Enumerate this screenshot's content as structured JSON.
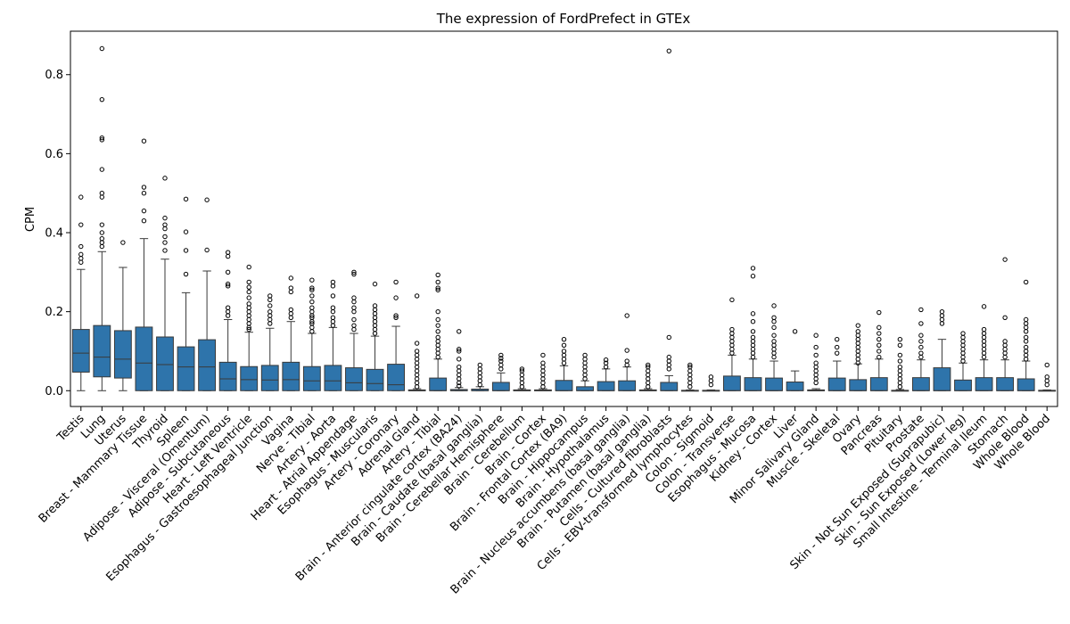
{
  "chart_data": {
    "type": "box",
    "title": "The expression of FordPrefect in GTEx",
    "xlabel": "",
    "ylabel": "CPM",
    "ylim": [
      -0.04,
      0.91
    ],
    "yticks": [
      0.0,
      0.2,
      0.4,
      0.6,
      0.8
    ],
    "ytick_labels": [
      "0.0",
      "0.2",
      "0.4",
      "0.6",
      "0.8"
    ],
    "grid": false,
    "box_color": "#2e74ab",
    "categories": [
      {
        "name": "Testis",
        "min": 0.0,
        "q1": 0.047,
        "median": 0.095,
        "q3": 0.155,
        "max": 0.307,
        "outliers": [
          0.325,
          0.335,
          0.345,
          0.365,
          0.42,
          0.49
        ]
      },
      {
        "name": "Lung",
        "min": 0.0,
        "q1": 0.035,
        "median": 0.085,
        "q3": 0.165,
        "max": 0.352,
        "outliers": [
          0.365,
          0.375,
          0.385,
          0.4,
          0.42,
          0.49,
          0.5,
          0.56,
          0.635,
          0.64,
          0.737,
          0.866
        ]
      },
      {
        "name": "Uterus",
        "min": 0.0,
        "q1": 0.032,
        "median": 0.08,
        "q3": 0.152,
        "max": 0.312,
        "outliers": [
          0.375
        ]
      },
      {
        "name": "Breast - Mammary Tissue",
        "min": 0.0,
        "q1": 0.0,
        "median": 0.07,
        "q3": 0.161,
        "max": 0.385,
        "outliers": [
          0.43,
          0.455,
          0.5,
          0.515,
          0.632
        ]
      },
      {
        "name": "Thyroid",
        "min": 0.0,
        "q1": 0.0,
        "median": 0.066,
        "q3": 0.136,
        "max": 0.333,
        "outliers": [
          0.355,
          0.375,
          0.39,
          0.41,
          0.42,
          0.437,
          0.538
        ]
      },
      {
        "name": "Spleen",
        "min": 0.0,
        "q1": 0.0,
        "median": 0.06,
        "q3": 0.111,
        "max": 0.248,
        "outliers": [
          0.295,
          0.355,
          0.402,
          0.485
        ]
      },
      {
        "name": "Adipose - Visceral (Omentum)",
        "min": 0.0,
        "q1": 0.0,
        "median": 0.06,
        "q3": 0.129,
        "max": 0.303,
        "outliers": [
          0.356,
          0.483
        ]
      },
      {
        "name": "Adipose - Subcutaneous",
        "min": 0.0,
        "q1": 0.0,
        "median": 0.03,
        "q3": 0.072,
        "max": 0.18,
        "outliers": [
          0.19,
          0.2,
          0.21,
          0.265,
          0.27,
          0.3,
          0.34,
          0.35
        ]
      },
      {
        "name": "Heart - Left Ventricle",
        "min": 0.0,
        "q1": 0.0,
        "median": 0.028,
        "q3": 0.061,
        "max": 0.148,
        "outliers": [
          0.155,
          0.16,
          0.17,
          0.18,
          0.19,
          0.2,
          0.21,
          0.22,
          0.235,
          0.25,
          0.262,
          0.275,
          0.313
        ]
      },
      {
        "name": "Esophagus - Gastroesophageal Junction",
        "min": 0.0,
        "q1": 0.0,
        "median": 0.027,
        "q3": 0.064,
        "max": 0.158,
        "outliers": [
          0.17,
          0.18,
          0.19,
          0.2,
          0.215,
          0.23,
          0.24
        ]
      },
      {
        "name": "Vagina",
        "min": 0.0,
        "q1": 0.0,
        "median": 0.028,
        "q3": 0.072,
        "max": 0.175,
        "outliers": [
          0.185,
          0.195,
          0.205,
          0.25,
          0.26,
          0.285
        ]
      },
      {
        "name": "Nerve - Tibial",
        "min": 0.0,
        "q1": 0.0,
        "median": 0.025,
        "q3": 0.061,
        "max": 0.145,
        "outliers": [
          0.15,
          0.16,
          0.17,
          0.175,
          0.185,
          0.19,
          0.2,
          0.21,
          0.225,
          0.24,
          0.255,
          0.26,
          0.28
        ]
      },
      {
        "name": "Artery - Aorta",
        "min": 0.0,
        "q1": 0.0,
        "median": 0.025,
        "q3": 0.064,
        "max": 0.16,
        "outliers": [
          0.165,
          0.175,
          0.185,
          0.2,
          0.21,
          0.24,
          0.265,
          0.275
        ]
      },
      {
        "name": "Heart - Atrial Appendage",
        "min": 0.0,
        "q1": 0.0,
        "median": 0.02,
        "q3": 0.058,
        "max": 0.145,
        "outliers": [
          0.155,
          0.165,
          0.18,
          0.2,
          0.21,
          0.225,
          0.235,
          0.295,
          0.3
        ]
      },
      {
        "name": "Esophagus - Muscularis",
        "min": 0.0,
        "q1": 0.0,
        "median": 0.018,
        "q3": 0.054,
        "max": 0.138,
        "outliers": [
          0.145,
          0.155,
          0.165,
          0.175,
          0.185,
          0.195,
          0.205,
          0.215,
          0.27
        ]
      },
      {
        "name": "Artery - Coronary",
        "min": 0.0,
        "q1": 0.0,
        "median": 0.015,
        "q3": 0.067,
        "max": 0.163,
        "outliers": [
          0.185,
          0.19,
          0.235,
          0.275
        ]
      },
      {
        "name": "Adrenal Gland",
        "min": 0.0,
        "q1": 0.0,
        "median": 0.0,
        "q3": 0.002,
        "max": 0.005,
        "outliers": [
          0.01,
          0.02,
          0.03,
          0.04,
          0.05,
          0.06,
          0.07,
          0.08,
          0.09,
          0.1,
          0.12,
          0.24
        ]
      },
      {
        "name": "Artery - Tibial",
        "min": 0.0,
        "q1": 0.0,
        "median": 0.0,
        "q3": 0.032,
        "max": 0.08,
        "outliers": [
          0.085,
          0.095,
          0.105,
          0.115,
          0.125,
          0.135,
          0.15,
          0.165,
          0.18,
          0.2,
          0.255,
          0.26,
          0.275,
          0.293
        ]
      },
      {
        "name": "Brain - Anterior cingulate cortex (BA24)",
        "min": 0.0,
        "q1": 0.0,
        "median": 0.0,
        "q3": 0.003,
        "max": 0.008,
        "outliers": [
          0.012,
          0.02,
          0.03,
          0.04,
          0.05,
          0.06,
          0.08,
          0.1,
          0.105,
          0.15
        ]
      },
      {
        "name": "Brain - Caudate (basal ganglia)",
        "min": 0.0,
        "q1": 0.0,
        "median": 0.0,
        "q3": 0.004,
        "max": 0.01,
        "outliers": [
          0.015,
          0.025,
          0.035,
          0.045,
          0.055,
          0.065
        ]
      },
      {
        "name": "Brain - Cerebellar Hemisphere",
        "min": 0.0,
        "q1": 0.0,
        "median": 0.0,
        "q3": 0.021,
        "max": 0.045,
        "outliers": [
          0.055,
          0.065,
          0.075,
          0.082,
          0.09
        ]
      },
      {
        "name": "Brain - Cerebellum",
        "min": 0.0,
        "q1": 0.0,
        "median": 0.0,
        "q3": 0.002,
        "max": 0.005,
        "outliers": [
          0.01,
          0.02,
          0.03,
          0.04,
          0.05,
          0.055
        ]
      },
      {
        "name": "Brain - Cortex",
        "min": 0.0,
        "q1": 0.0,
        "median": 0.0,
        "q3": 0.002,
        "max": 0.005,
        "outliers": [
          0.01,
          0.02,
          0.03,
          0.04,
          0.05,
          0.06,
          0.07,
          0.09
        ]
      },
      {
        "name": "Brain - Frontal Cortex (BA9)",
        "min": 0.0,
        "q1": 0.0,
        "median": 0.0,
        "q3": 0.026,
        "max": 0.063,
        "outliers": [
          0.07,
          0.08,
          0.09,
          0.1,
          0.115,
          0.13
        ]
      },
      {
        "name": "Brain - Hippocampus",
        "min": 0.0,
        "q1": 0.0,
        "median": 0.0,
        "q3": 0.01,
        "max": 0.025,
        "outliers": [
          0.03,
          0.04,
          0.05,
          0.06,
          0.07,
          0.08,
          0.09
        ]
      },
      {
        "name": "Brain - Hypothalamus",
        "min": 0.0,
        "q1": 0.0,
        "median": 0.0,
        "q3": 0.023,
        "max": 0.055,
        "outliers": [
          0.06,
          0.07,
          0.078
        ]
      },
      {
        "name": "Brain - Nucleus accumbens (basal ganglia)",
        "min": 0.0,
        "q1": 0.0,
        "median": 0.0,
        "q3": 0.025,
        "max": 0.06,
        "outliers": [
          0.065,
          0.075,
          0.102,
          0.19
        ]
      },
      {
        "name": "Brain - Putamen (basal ganglia)",
        "min": 0.0,
        "q1": 0.0,
        "median": 0.0,
        "q3": 0.002,
        "max": 0.005,
        "outliers": [
          0.01,
          0.02,
          0.03,
          0.04,
          0.05,
          0.06,
          0.065
        ]
      },
      {
        "name": "Cells - Cultured fibroblasts",
        "min": 0.0,
        "q1": 0.0,
        "median": 0.0,
        "q3": 0.021,
        "max": 0.038,
        "outliers": [
          0.055,
          0.065,
          0.075,
          0.085,
          0.135,
          0.86
        ]
      },
      {
        "name": "Cells - EBV-transformed lymphocytes",
        "min": 0.0,
        "q1": 0.0,
        "median": 0.0,
        "q3": 0.001,
        "max": 0.002,
        "outliers": [
          0.01,
          0.02,
          0.03,
          0.04,
          0.05,
          0.06,
          0.065
        ]
      },
      {
        "name": "Colon - Sigmoid",
        "min": 0.0,
        "q1": 0.0,
        "median": 0.0,
        "q3": 0.001,
        "max": 0.002,
        "outliers": [
          0.015,
          0.025,
          0.035
        ]
      },
      {
        "name": "Colon - Transverse",
        "min": 0.0,
        "q1": 0.0,
        "median": 0.0,
        "q3": 0.037,
        "max": 0.09,
        "outliers": [
          0.095,
          0.105,
          0.115,
          0.125,
          0.135,
          0.145,
          0.155,
          0.23
        ]
      },
      {
        "name": "Esophagus - Mucosa",
        "min": 0.0,
        "q1": 0.0,
        "median": 0.0,
        "q3": 0.033,
        "max": 0.08,
        "outliers": [
          0.085,
          0.095,
          0.105,
          0.115,
          0.125,
          0.135,
          0.15,
          0.175,
          0.195,
          0.29,
          0.31
        ]
      },
      {
        "name": "Kidney - Cortex",
        "min": 0.0,
        "q1": 0.0,
        "median": 0.0,
        "q3": 0.032,
        "max": 0.075,
        "outliers": [
          0.085,
          0.095,
          0.105,
          0.115,
          0.125,
          0.14,
          0.16,
          0.175,
          0.185,
          0.215
        ]
      },
      {
        "name": "Liver",
        "min": 0.0,
        "q1": 0.0,
        "median": 0.0,
        "q3": 0.022,
        "max": 0.05,
        "outliers": [
          0.15
        ]
      },
      {
        "name": "Minor Salivary Gland",
        "min": 0.0,
        "q1": 0.0,
        "median": 0.0,
        "q3": 0.002,
        "max": 0.005,
        "outliers": [
          0.02,
          0.03,
          0.04,
          0.05,
          0.06,
          0.07,
          0.09,
          0.11,
          0.14
        ]
      },
      {
        "name": "Muscle - Skeletal",
        "min": 0.0,
        "q1": 0.0,
        "median": 0.0,
        "q3": 0.032,
        "max": 0.075,
        "outliers": [
          0.095,
          0.11,
          0.13
        ]
      },
      {
        "name": "Ovary",
        "min": 0.0,
        "q1": 0.0,
        "median": 0.0,
        "q3": 0.028,
        "max": 0.068,
        "outliers": [
          0.07,
          0.08,
          0.09,
          0.1,
          0.11,
          0.12,
          0.13,
          0.14,
          0.15,
          0.165
        ]
      },
      {
        "name": "Pancreas",
        "min": 0.0,
        "q1": 0.0,
        "median": 0.0,
        "q3": 0.033,
        "max": 0.08,
        "outliers": [
          0.085,
          0.1,
          0.115,
          0.13,
          0.145,
          0.16,
          0.198
        ]
      },
      {
        "name": "Pituitary",
        "min": 0.0,
        "q1": 0.0,
        "median": 0.0,
        "q3": 0.001,
        "max": 0.003,
        "outliers": [
          0.01,
          0.02,
          0.03,
          0.04,
          0.05,
          0.06,
          0.075,
          0.09,
          0.115,
          0.13
        ]
      },
      {
        "name": "Prostate",
        "min": 0.0,
        "q1": 0.0,
        "median": 0.0,
        "q3": 0.033,
        "max": 0.078,
        "outliers": [
          0.085,
          0.095,
          0.11,
          0.125,
          0.14,
          0.17,
          0.205
        ]
      },
      {
        "name": "Skin - Not Sun Exposed (Suprapubic)",
        "min": 0.0,
        "q1": 0.0,
        "median": 0.0,
        "q3": 0.058,
        "max": 0.13,
        "outliers": [
          0.17,
          0.18,
          0.19,
          0.2
        ]
      },
      {
        "name": "Skin - Sun Exposed (Lower leg)",
        "min": 0.0,
        "q1": 0.0,
        "median": 0.0,
        "q3": 0.027,
        "max": 0.07,
        "outliers": [
          0.075,
          0.085,
          0.095,
          0.105,
          0.115,
          0.125,
          0.135,
          0.145
        ]
      },
      {
        "name": "Small Intestine - Terminal Ileum",
        "min": 0.0,
        "q1": 0.0,
        "median": 0.0,
        "q3": 0.033,
        "max": 0.078,
        "outliers": [
          0.085,
          0.095,
          0.105,
          0.115,
          0.125,
          0.135,
          0.145,
          0.155,
          0.213
        ]
      },
      {
        "name": "Stomach",
        "min": 0.0,
        "q1": 0.0,
        "median": 0.0,
        "q3": 0.033,
        "max": 0.078,
        "outliers": [
          0.085,
          0.095,
          0.105,
          0.115,
          0.125,
          0.185,
          0.332
        ]
      },
      {
        "name": "Whole Blood",
        "min": 0.0,
        "q1": 0.0,
        "median": 0.0,
        "q3": 0.03,
        "max": 0.075,
        "outliers": [
          0.08,
          0.09,
          0.1,
          0.11,
          0.125,
          0.135,
          0.15,
          0.16,
          0.17,
          0.18,
          0.275
        ]
      },
      {
        "name": "Whole Blood ",
        "min": 0.0,
        "q1": 0.0,
        "median": 0.0,
        "q3": 0.001,
        "max": 0.002,
        "outliers": [
          0.015,
          0.025,
          0.035,
          0.065
        ]
      }
    ]
  }
}
